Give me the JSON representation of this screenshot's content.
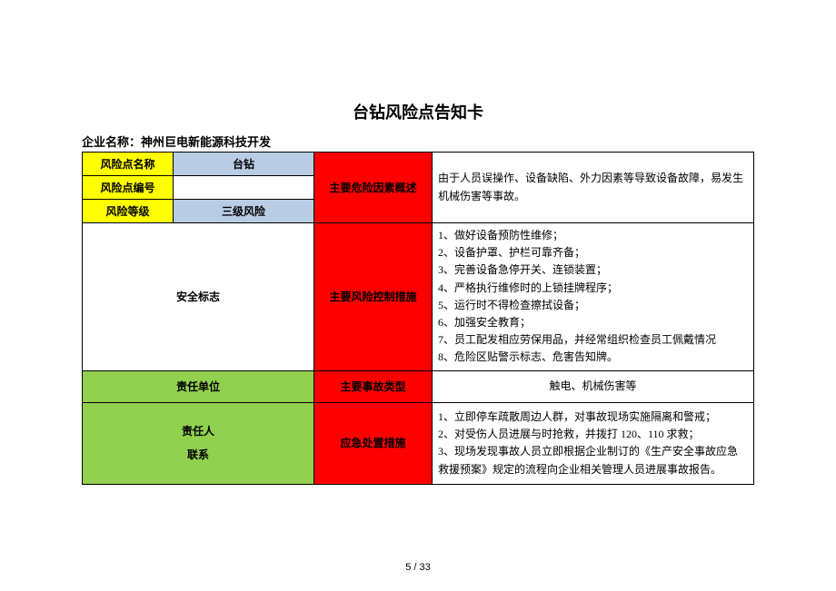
{
  "title": "台钻风险点告知卡",
  "company_label": "企业名称：神州巨电新能源科技开发",
  "labels": {
    "risk_point_name": "风险点名称",
    "risk_point_code": "风险点编号",
    "risk_level": "风险等级",
    "main_hazard_desc": "主要危险因素概述",
    "safety_sign": "安全标志",
    "main_control": "主要风险控制措施",
    "responsible_unit": "责任单位",
    "accident_type": "主要事故类型",
    "responsible_person": "责任人",
    "contact": "联系",
    "emergency": "应急处置措施"
  },
  "values": {
    "risk_point_name": "台钻",
    "risk_point_code": "",
    "risk_level": "三级风险",
    "hazard_desc": "由于人员误操作、设备缺陷、外力因素等导致设备故障，易发生机械伤害等事故。",
    "responsible_unit": "",
    "accident_type": "触电、机械伤害等",
    "responsible_person": "",
    "contact": ""
  },
  "control_measures": [
    "1、做好设备预防性维修；",
    "2、设备护罩、护栏可靠齐备；",
    "3、完善设备急停开关、连锁装置；",
    "4、严格执行维修时的上锁挂牌程序；",
    "5、运行时不得检查擦拭设备；",
    "6、加强安全教育；",
    "7、员工配发相应劳保用品，并经常组织检查员工佩戴情况",
    "8、危险区贴警示标志、危害告知牌。"
  ],
  "emergency_measures": [
    "1、立即停车疏散周边人群，对事故现场实施隔离和警戒；",
    "2、对受伤人员进展与时抢救，并拨打 120、110 求救；",
    "3、现场发现事故人员立即根据企业制订的《生产安全事故应急救援预案》规定的流程向企业相关管理人员进展事故报告。"
  ],
  "page_number": "5  / 33",
  "colors": {
    "yellow": "#ffff00",
    "blue": "#b8cce4",
    "red": "#ff0000",
    "green": "#92d050",
    "white": "#ffffff",
    "border": "#000000"
  }
}
